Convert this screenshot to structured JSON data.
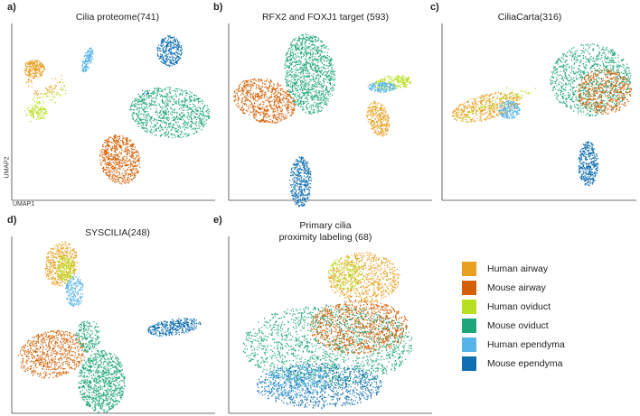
{
  "chart_data": {
    "type": "scatter",
    "description_kind": "UMAP embeddings",
    "legend": [
      {
        "name": "Human airway",
        "color": "#E8A020"
      },
      {
        "name": "Mouse airway",
        "color": "#D55E00"
      },
      {
        "name": "Human oviduct",
        "color": "#B8E020"
      },
      {
        "name": "Mouse oviduct",
        "color": "#1FA57A"
      },
      {
        "name": "Human ependyma",
        "color": "#56B4E9"
      },
      {
        "name": "Mouse ependyma",
        "color": "#0F6EB0"
      }
    ],
    "axes": {
      "xlabel": "UMAP1",
      "ylabel": "UMAP2"
    },
    "panels": [
      {
        "label": "a)",
        "title": "Cilia proteome(741)"
      },
      {
        "label": "b)",
        "title": "RFX2 and FOXJ1 target (593)"
      },
      {
        "label": "c)",
        "title": "CiliaCarta(316)"
      },
      {
        "label": "d)",
        "title": "SYSCILIA(248)"
      },
      {
        "label": "e)",
        "title_line1": "Primary cilia",
        "title_line2": "proximity labeling (68)"
      }
    ]
  }
}
